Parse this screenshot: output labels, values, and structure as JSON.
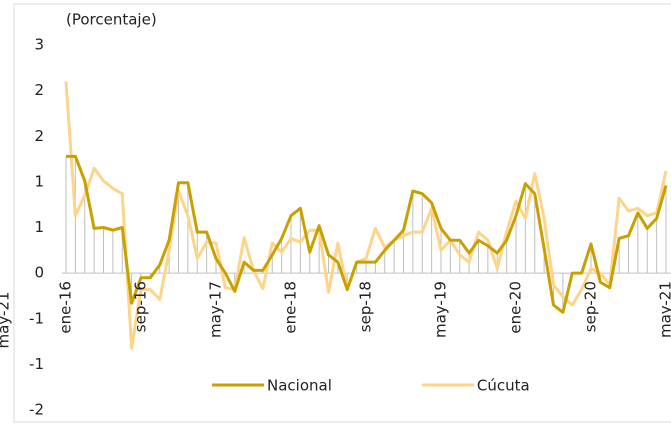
{
  "chart_data": {
    "type": "line",
    "subtitle": "(Porcentaje)",
    "side_label": "may-21",
    "categories": [
      "ene-16",
      null,
      null,
      null,
      null,
      null,
      null,
      null,
      "sep-16",
      null,
      null,
      null,
      null,
      null,
      null,
      null,
      "may-17",
      null,
      null,
      null,
      null,
      null,
      null,
      null,
      "ene-18",
      null,
      null,
      null,
      null,
      null,
      null,
      null,
      "sep-18",
      null,
      null,
      null,
      null,
      null,
      null,
      null,
      "may-19",
      null,
      null,
      null,
      null,
      null,
      null,
      null,
      "ene-20",
      null,
      null,
      null,
      null,
      null,
      null,
      null,
      "sep-20",
      null,
      null,
      null,
      null,
      null,
      null,
      null,
      "may-21"
    ],
    "series": [
      {
        "name": "Nacional",
        "color": "#c9a000",
        "values": [
          1.28,
          1.28,
          1.01,
          0.49,
          0.5,
          0.47,
          0.5,
          -0.33,
          -0.05,
          -0.05,
          0.09,
          0.36,
          0.99,
          0.99,
          0.45,
          0.45,
          0.16,
          0,
          -0.2,
          0.12,
          0.03,
          0.03,
          0.2,
          0.38,
          0.63,
          0.71,
          0.23,
          0.52,
          0.2,
          0.12,
          -0.18,
          0.12,
          0.12,
          0.12,
          0.25,
          0.36,
          0.47,
          0.9,
          0.87,
          0.77,
          0.49,
          0.36,
          0.36,
          0.22,
          0.36,
          0.3,
          0.22,
          0.36,
          0.63,
          0.98,
          0.87,
          0.27,
          -0.35,
          -0.43,
          0,
          0,
          0.32,
          -0.1,
          -0.16,
          0.38,
          0.41,
          0.66,
          0.49,
          0.6,
          0.96
        ]
      },
      {
        "name": "Cúcuta",
        "color": "#fcd58a",
        "values": [
          2.1,
          0.63,
          0.85,
          1.15,
          1.01,
          0.93,
          0.87,
          -0.82,
          -0.18,
          -0.18,
          -0.29,
          0.25,
          0.9,
          0.63,
          0.16,
          0.34,
          0.33,
          -0.16,
          -0.18,
          0.39,
          0.03,
          -0.17,
          0.33,
          0.23,
          0.38,
          0.34,
          0.47,
          0.47,
          -0.21,
          0.33,
          -0.18,
          0.12,
          0.16,
          0.49,
          0.28,
          0.36,
          0.41,
          0.45,
          0.45,
          0.71,
          0.25,
          0.36,
          0.2,
          0.12,
          0.45,
          0.36,
          0.05,
          0.45,
          0.79,
          0.6,
          1.09,
          0.6,
          -0.13,
          -0.26,
          -0.35,
          -0.18,
          0.05,
          0,
          -0.13,
          0.82,
          0.68,
          0.71,
          0.63,
          0.66,
          1.12
        ]
      }
    ],
    "ylim": [
      -1.5,
      2.5
    ],
    "yticks": [
      {
        "value": -1.5,
        "label": "-2"
      },
      {
        "value": -1,
        "label": "-1"
      },
      {
        "value": -0.5,
        "label": "-1"
      },
      0,
      {
        "value": 0.5,
        "label": "1"
      },
      1,
      {
        "value": 1.5,
        "label": "2"
      },
      2,
      {
        "value": 2.5,
        "label": "3"
      }
    ],
    "drop_lines": true,
    "legend": "bottom"
  }
}
